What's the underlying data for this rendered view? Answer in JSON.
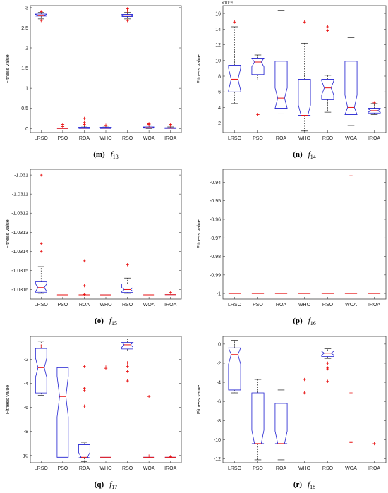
{
  "chart_data": [
    {
      "type": "box",
      "caption_letter": "(m)",
      "caption_f": "f",
      "caption_sub": "13",
      "ylabel": "Fitness value",
      "ylim": [
        -0.1,
        3.05
      ],
      "yticks": [
        0,
        0.5,
        1,
        1.5,
        2,
        2.5,
        3
      ],
      "categories": [
        "LRSO",
        "PSO",
        "ROA",
        "WHO",
        "RSO",
        "WOA",
        "IROA"
      ],
      "boxes": [
        {
          "min": 2.72,
          "q1": 2.79,
          "med": 2.81,
          "q3": 2.84,
          "max": 2.88,
          "outliers": [
            2.68,
            2.9
          ],
          "notch": 0.02
        },
        {
          "min": 0,
          "q1": 0,
          "med": 0,
          "q3": 0,
          "max": 0,
          "outliers": [
            0.05,
            0.1
          ],
          "notch": 0
        },
        {
          "min": 0,
          "q1": 0,
          "med": 0.01,
          "q3": 0.03,
          "max": 0.06,
          "outliers": [
            0.1,
            0.15,
            0.25
          ],
          "notch": 0.01
        },
        {
          "min": 0,
          "q1": 0,
          "med": 0.01,
          "q3": 0.03,
          "max": 0.06,
          "outliers": [
            0.08
          ],
          "notch": 0.01
        },
        {
          "min": 2.72,
          "q1": 2.78,
          "med": 2.8,
          "q3": 2.83,
          "max": 2.88,
          "outliers": [
            2.68,
            2.92,
            2.97
          ],
          "notch": 0.02
        },
        {
          "min": 0,
          "q1": 0.01,
          "med": 0.02,
          "q3": 0.04,
          "max": 0.07,
          "outliers": [
            0.1,
            0.12
          ],
          "notch": 0.01
        },
        {
          "min": 0,
          "q1": 0,
          "med": 0.01,
          "q3": 0.02,
          "max": 0.04,
          "outliers": [
            0.07,
            0.1
          ],
          "notch": 0.005
        }
      ]
    },
    {
      "type": "box",
      "caption_letter": "(n)",
      "caption_f": "f",
      "caption_sub": "14",
      "ylabel": "Fitness value",
      "yexp": "×10⁻⁴",
      "ylim": [
        0.8,
        17
      ],
      "yticks": [
        2,
        4,
        6,
        8,
        10,
        12,
        14,
        16
      ],
      "categories": [
        "LRSO",
        "PSO",
        "ROA",
        "WHO",
        "RSO",
        "WOA",
        "IROA"
      ],
      "boxes": [
        {
          "min": 4.5,
          "q1": 6.0,
          "med": 7.6,
          "q3": 9.4,
          "max": 14.3,
          "outliers": [
            14.9
          ],
          "notch": 1.4
        },
        {
          "min": 7.5,
          "q1": 8.2,
          "med": 9.8,
          "q3": 10.3,
          "max": 10.7,
          "outliers": [
            3.1
          ],
          "notch": 0.6
        },
        {
          "min": 3.2,
          "q1": 3.9,
          "med": 5.2,
          "q3": 9.9,
          "max": 16.4,
          "outliers": [],
          "notch": 1.3
        },
        {
          "min": 1.0,
          "q1": 3.0,
          "med": 3.0,
          "q3": 7.6,
          "max": 12.2,
          "outliers": [
            14.9
          ],
          "notch": 1.3
        },
        {
          "min": 3.4,
          "q1": 5.0,
          "med": 6.5,
          "q3": 7.6,
          "max": 8.1,
          "outliers": [
            13.8,
            14.3
          ],
          "notch": 0.9
        },
        {
          "min": 1.7,
          "q1": 3.1,
          "med": 4.0,
          "q3": 9.9,
          "max": 12.9,
          "outliers": [],
          "notch": 1.6
        },
        {
          "min": 3.1,
          "q1": 3.3,
          "med": 3.6,
          "q3": 3.9,
          "max": 4.5,
          "outliers": [
            4.6
          ],
          "notch": 0.2
        }
      ]
    },
    {
      "type": "box",
      "caption_letter": "(o)",
      "caption_f": "f",
      "caption_sub": "15",
      "ylabel": "Fitness value",
      "ylim": [
        -1.03165,
        -1.03097
      ],
      "yticks": [
        -1.031,
        -1.0311,
        -1.0312,
        -1.0313,
        -1.0314,
        -1.0315,
        -1.0316
      ],
      "categories": [
        "LRSO",
        "PSO",
        "ROA",
        "WHO",
        "RSO",
        "WOA",
        "IROA"
      ],
      "boxes": [
        {
          "min": -1.03162,
          "q1": -1.031614,
          "med": -1.03159,
          "q3": -1.03156,
          "max": -1.03148,
          "outliers": [
            -1.0314,
            -1.03136,
            -1.031
          ],
          "notch": 2e-05
        },
        {
          "min": -1.031628,
          "q1": -1.031628,
          "med": -1.031628,
          "q3": -1.031628,
          "max": -1.031628,
          "outliers": [],
          "notch": 0
        },
        {
          "min": -1.031628,
          "q1": -1.031628,
          "med": -1.031628,
          "q3": -1.031628,
          "max": -1.031628,
          "outliers": [
            -1.03145,
            -1.03158,
            -1.031625
          ],
          "notch": 0
        },
        {
          "min": -1.031628,
          "q1": -1.031628,
          "med": -1.031628,
          "q3": -1.031628,
          "max": -1.031628,
          "outliers": [],
          "notch": 0
        },
        {
          "min": -1.03162,
          "q1": -1.031615,
          "med": -1.0316,
          "q3": -1.03157,
          "max": -1.03154,
          "outliers": [
            -1.03147
          ],
          "notch": 1e-05
        },
        {
          "min": -1.031628,
          "q1": -1.031628,
          "med": -1.031628,
          "q3": -1.031628,
          "max": -1.031628,
          "outliers": [],
          "notch": 0
        },
        {
          "min": -1.031627,
          "q1": -1.031627,
          "med": -1.031627,
          "q3": -1.031626,
          "max": -1.031625,
          "outliers": [
            -1.031615
          ],
          "notch": 0
        }
      ]
    },
    {
      "type": "box",
      "caption_letter": "(p)",
      "caption_f": "f",
      "caption_sub": "16",
      "ylabel": "Fitness value",
      "ylim": [
        -1.003,
        -0.933
      ],
      "yticks": [
        -0.94,
        -0.95,
        -0.96,
        -0.97,
        -0.98,
        -0.99,
        -1
      ],
      "categories": [
        "LRSO",
        "PSO",
        "ROA",
        "WHO",
        "RSO",
        "WOA",
        "IROA"
      ],
      "boxes": [
        {
          "min": -1,
          "q1": -1,
          "med": -1,
          "q3": -1,
          "max": -1,
          "outliers": [],
          "notch": 0
        },
        {
          "min": -1,
          "q1": -1,
          "med": -1,
          "q3": -1,
          "max": -1,
          "outliers": [],
          "notch": 0
        },
        {
          "min": -1,
          "q1": -1,
          "med": -1,
          "q3": -1,
          "max": -1,
          "outliers": [],
          "notch": 0
        },
        {
          "min": -1,
          "q1": -1,
          "med": -1,
          "q3": -1,
          "max": -1,
          "outliers": [],
          "notch": 0
        },
        {
          "min": -1,
          "q1": -1,
          "med": -1,
          "q3": -1,
          "max": -1,
          "outliers": [],
          "notch": 0
        },
        {
          "min": -1,
          "q1": -1,
          "med": -1,
          "q3": -1,
          "max": -1,
          "outliers": [
            -0.9365
          ],
          "notch": 0
        },
        {
          "min": -1,
          "q1": -1,
          "med": -1,
          "q3": -1,
          "max": -1,
          "outliers": [],
          "notch": 0
        }
      ]
    },
    {
      "type": "box",
      "caption_letter": "(q)",
      "caption_f": "f",
      "caption_sub": "17",
      "ylabel": "Fitness value",
      "ylim": [
        -10.6,
        -0.1
      ],
      "yticks": [
        -2,
        -4,
        -6,
        -8,
        -10
      ],
      "categories": [
        "LRSO",
        "PSO",
        "ROA",
        "WHO",
        "RSO",
        "WOA",
        "IROA"
      ],
      "boxes": [
        {
          "min": -5.0,
          "q1": -4.8,
          "med": -2.7,
          "q3": -1.1,
          "max": -0.5,
          "outliers": [
            -0.9
          ],
          "notch": 0.8
        },
        {
          "min": -10.15,
          "q1": -10.15,
          "med": -5.1,
          "q3": -2.7,
          "max": -2.65,
          "outliers": [],
          "notch": 1.7
        },
        {
          "min": -10.5,
          "q1": -10.2,
          "med": -10.15,
          "q3": -9.1,
          "max": -8.9,
          "outliers": [
            -2.6,
            -4.4,
            -4.6,
            -5.9
          ],
          "notch": 0.4
        },
        {
          "min": -10.15,
          "q1": -10.15,
          "med": -10.15,
          "q3": -10.15,
          "max": -10.15,
          "outliers": [
            -2.65,
            -2.75
          ],
          "notch": 0
        },
        {
          "min": -1.3,
          "q1": -1.15,
          "med": -0.8,
          "q3": -0.6,
          "max": -0.3,
          "outliers": [
            -2.3,
            -2.6,
            -3.0,
            -3.8
          ],
          "notch": 0.2
        },
        {
          "min": -10.15,
          "q1": -10.15,
          "med": -10.15,
          "q3": -10.15,
          "max": -10.15,
          "outliers": [
            -5.1,
            -10.05
          ],
          "notch": 0
        },
        {
          "min": -10.15,
          "q1": -10.15,
          "med": -10.15,
          "q3": -10.15,
          "max": -10.15,
          "outliers": [
            -10.1
          ],
          "notch": 0
        }
      ]
    },
    {
      "type": "box",
      "caption_letter": "(r)",
      "caption_f": "f",
      "caption_sub": "18",
      "ylabel": "Fitness value",
      "ylim": [
        -12.4,
        0.8
      ],
      "yticks": [
        0,
        -2,
        -4,
        -6,
        -8,
        -10,
        -12
      ],
      "categories": [
        "LRSO",
        "PSO",
        "ROA",
        "WHO",
        "RSO",
        "WOA",
        "IROA"
      ],
      "boxes": [
        {
          "min": -5.1,
          "q1": -4.8,
          "med": -1.1,
          "q3": -0.4,
          "max": 0.4,
          "outliers": [],
          "notch": 1.0
        },
        {
          "min": -12.1,
          "q1": -10.4,
          "med": -10.4,
          "q3": -5.1,
          "max": -3.7,
          "outliers": [],
          "notch": 1.4
        },
        {
          "min": -12.1,
          "q1": -10.4,
          "med": -10.4,
          "q3": -6.2,
          "max": -4.8,
          "outliers": [],
          "notch": 1.3
        },
        {
          "min": -10.45,
          "q1": -10.45,
          "med": -10.45,
          "q3": -10.45,
          "max": -10.45,
          "outliers": [
            -3.7,
            -5.1
          ],
          "notch": 0
        },
        {
          "min": -1.5,
          "q1": -1.3,
          "med": -0.95,
          "q3": -0.7,
          "max": -0.5,
          "outliers": [
            -2.0,
            -2.5,
            -2.6,
            -3.9
          ],
          "notch": 0.2
        },
        {
          "min": -10.45,
          "q1": -10.45,
          "med": -10.45,
          "q3": -10.45,
          "max": -10.45,
          "outliers": [
            -5.1,
            -10.2,
            -10.3
          ],
          "notch": 0
        },
        {
          "min": -10.45,
          "q1": -10.45,
          "med": -10.45,
          "q3": -10.45,
          "max": -10.45,
          "outliers": [
            -10.4
          ],
          "notch": 0
        }
      ]
    }
  ],
  "colors": {
    "box": "#1f1fd0",
    "median": "#e81010",
    "outlier": "#e81010",
    "whisker": "#222222",
    "axis": "#444444"
  }
}
